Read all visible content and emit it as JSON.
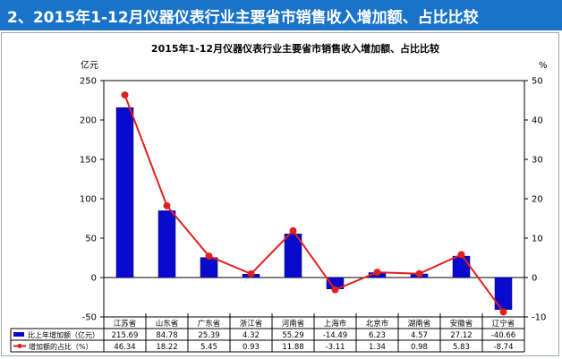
{
  "banner": {
    "title": "2、2015年1-12月仪器仪表行业主要省市销售收入增加额、占比比较"
  },
  "chart_data": {
    "type": "bar+line",
    "title": "2015年1-12月仪器仪表行业主要省市销售收入增加额、占比比较",
    "ylabel_left": "亿元",
    "ylabel_right": "%",
    "ylim_left": [
      -50,
      250
    ],
    "ylim_right": [
      -10,
      50
    ],
    "yticks_left": [
      -50,
      0,
      50,
      100,
      150,
      200,
      250
    ],
    "yticks_right": [
      -10,
      0,
      10,
      20,
      30,
      40,
      50
    ],
    "categories": [
      "江苏省",
      "山东省",
      "广东省",
      "浙江省",
      "河南省",
      "上海市",
      "北京市",
      "湖南省",
      "安徽省",
      "辽宁省"
    ],
    "series": [
      {
        "name": "比上年增加额（亿元）",
        "type": "bar",
        "axis": "left",
        "color": "#0a0acc",
        "values": [
          215.69,
          84.78,
          25.39,
          4.32,
          55.29,
          -14.49,
          6.23,
          4.57,
          27.12,
          -40.66
        ],
        "labels": [
          "215.69",
          "84.78",
          "25.39",
          "4.32",
          "55.29",
          "-14.49",
          "6.23",
          "4.57",
          "27.12",
          "-40.66"
        ]
      },
      {
        "name": "增加额的占比（%）",
        "type": "line",
        "axis": "right",
        "color": "#e02020",
        "values": [
          46.34,
          18.22,
          5.45,
          0.93,
          11.88,
          -3.11,
          1.34,
          0.98,
          5.83,
          -8.74
        ],
        "labels": [
          "46.34",
          "18.22",
          "5.45",
          "0.93",
          "11.88",
          "-3.11",
          "1.34",
          "0.98",
          "5.83",
          "-8.74"
        ]
      }
    ],
    "legend": "table-below"
  }
}
